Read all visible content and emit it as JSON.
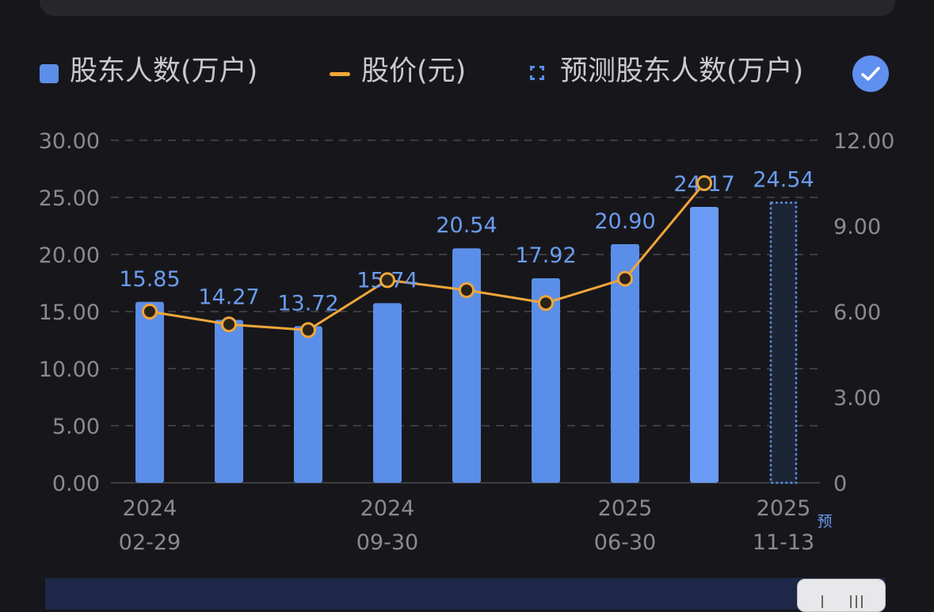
{
  "legend": {
    "holders": "股东人数(万户)",
    "price": "股价(元)",
    "forecast": "预测股东人数(万户)"
  },
  "forecast_tag": "预",
  "colors": {
    "bar": "#5b8ee8",
    "bar_latest": "#6a9bf4",
    "line": "#f0a63a",
    "forecast_border": "#5b8ee8",
    "forecast_fill": "#1c2536",
    "label": "#6b9cf0",
    "axis_text": "#8a8a90",
    "grid": "#3c3c42"
  },
  "icons": {
    "check": "check-icon",
    "slider": "slider-grip-icon"
  },
  "chart_data": {
    "type": "bar",
    "categories": [
      "2024\n02-29",
      "",
      "",
      "2024\n09-30",
      "",
      "",
      "2025\n06-30",
      "",
      "2025\n11-13"
    ],
    "x_tick_labels": [
      {
        "index": 0,
        "year": "2024",
        "date": "02-29"
      },
      {
        "index": 3,
        "year": "2024",
        "date": "09-30"
      },
      {
        "index": 6,
        "year": "2025",
        "date": "06-30"
      },
      {
        "index": 8,
        "year": "2025",
        "date": "11-13"
      }
    ],
    "series": [
      {
        "name": "股东人数(万户)",
        "type": "bar",
        "axis": "left",
        "values": [
          15.85,
          14.27,
          13.72,
          15.74,
          20.54,
          17.92,
          20.9,
          24.17,
          null
        ],
        "labels": [
          "15.85",
          "14.27",
          "13.72",
          "15.74",
          "20.54",
          "17.92",
          "20.90",
          "24.17",
          null
        ]
      },
      {
        "name": "预测股东人数(万户)",
        "type": "bar-dashed",
        "axis": "left",
        "values": [
          null,
          null,
          null,
          null,
          null,
          null,
          null,
          null,
          24.54
        ],
        "labels": [
          null,
          null,
          null,
          null,
          null,
          null,
          null,
          null,
          "24.54"
        ]
      },
      {
        "name": "股价(元)",
        "type": "line",
        "axis": "right",
        "values": [
          6.0,
          5.55,
          5.35,
          7.1,
          6.75,
          6.3,
          7.15,
          10.5,
          null
        ]
      }
    ],
    "y_left": {
      "ticks": [
        "0.00",
        "5.00",
        "10.00",
        "15.00",
        "20.00",
        "25.00",
        "30.00"
      ],
      "ylim": [
        0,
        30
      ]
    },
    "y_right": {
      "ticks": [
        "0",
        "3.00",
        "6.00",
        "9.00",
        "12.00"
      ],
      "ylim": [
        0,
        12
      ]
    },
    "grid": true,
    "legend_position": "top-left"
  }
}
